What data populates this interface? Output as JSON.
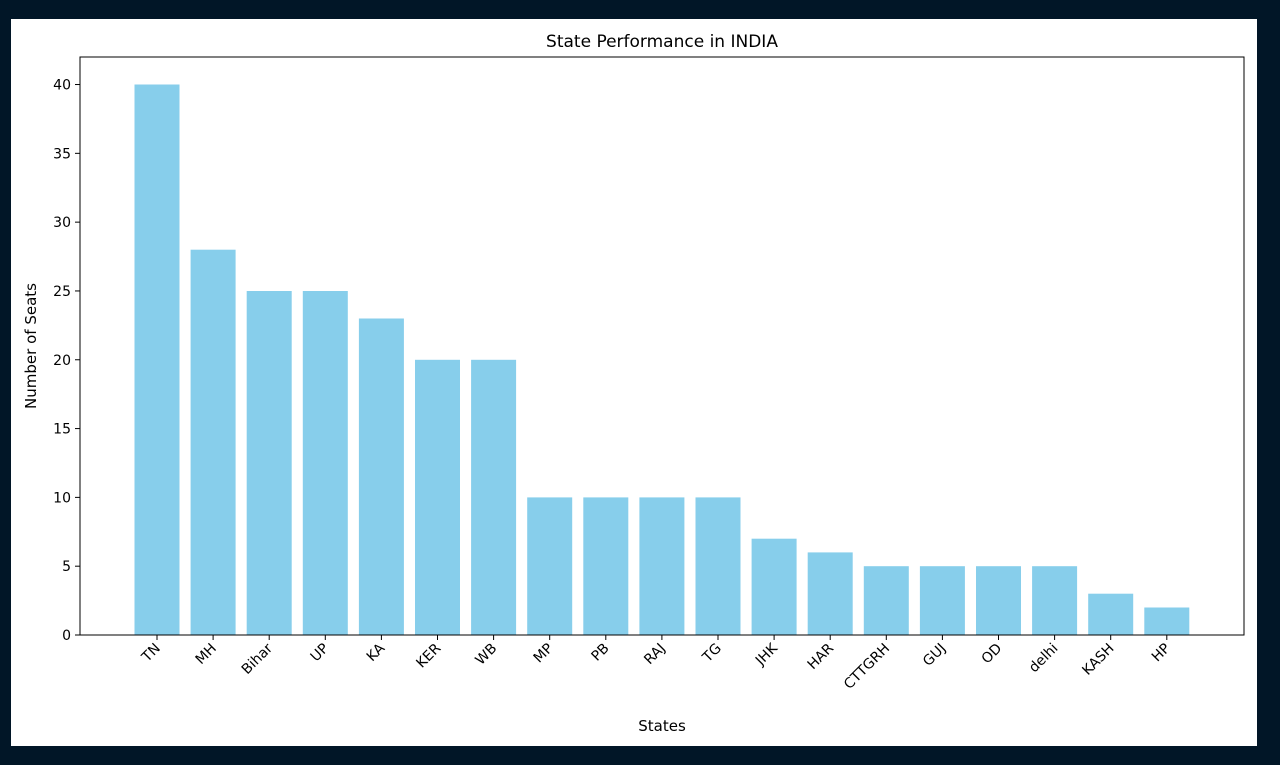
{
  "background_color": "#011627",
  "chart_data": {
    "type": "bar",
    "title": "State Performance in INDIA",
    "xlabel": "States",
    "ylabel": "Number of Seats",
    "categories": [
      "TN",
      "MH",
      "Bihar",
      "UP",
      "KA",
      "KER",
      "WB",
      "MP",
      "PB",
      "RAJ",
      "TG",
      "JHK",
      "HAR",
      "CTTGRH",
      "GUJ",
      "OD",
      "delhi",
      "KASH",
      "HP"
    ],
    "values": [
      40,
      28,
      25,
      25,
      23,
      20,
      20,
      10,
      10,
      10,
      10,
      7,
      6,
      5,
      5,
      5,
      5,
      3,
      2
    ],
    "ylim": [
      0,
      42
    ],
    "yticks": [
      0,
      5,
      10,
      15,
      20,
      25,
      30,
      35,
      40
    ],
    "bar_color": "#87ceeb",
    "grid": false,
    "legend": "none"
  }
}
